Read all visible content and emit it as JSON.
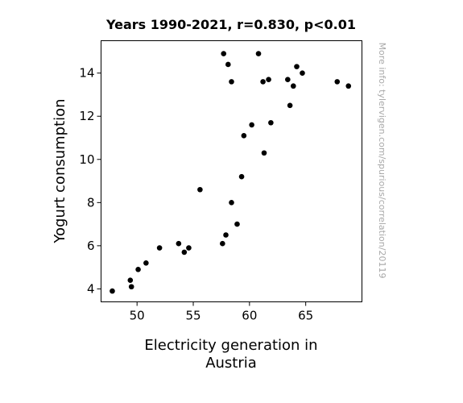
{
  "chart_data": {
    "type": "scatter",
    "title": "Years 1990-2021, r=0.830, p<0.01",
    "xlabel": [
      "Electricity generation in",
      "Austria"
    ],
    "ylabel": "Yogurt consumption",
    "credit": "More info: tylervigen.com/spurious/correlation/20119",
    "xlim": [
      46.8,
      70.0
    ],
    "ylim": [
      3.4,
      15.5
    ],
    "xticks": [
      50,
      55,
      60,
      65
    ],
    "yticks": [
      4,
      6,
      8,
      10,
      12,
      14
    ],
    "grid": false,
    "point_color": "#000000",
    "points": [
      {
        "x": 47.8,
        "y": 3.9
      },
      {
        "x": 49.5,
        "y": 4.1
      },
      {
        "x": 49.4,
        "y": 4.4
      },
      {
        "x": 50.1,
        "y": 4.9
      },
      {
        "x": 50.8,
        "y": 5.2
      },
      {
        "x": 52.0,
        "y": 5.9
      },
      {
        "x": 53.7,
        "y": 6.1
      },
      {
        "x": 54.2,
        "y": 5.7
      },
      {
        "x": 54.6,
        "y": 5.9
      },
      {
        "x": 55.6,
        "y": 8.6
      },
      {
        "x": 57.6,
        "y": 6.1
      },
      {
        "x": 57.9,
        "y": 6.5
      },
      {
        "x": 58.9,
        "y": 7.0
      },
      {
        "x": 58.4,
        "y": 8.0
      },
      {
        "x": 59.3,
        "y": 9.2
      },
      {
        "x": 59.5,
        "y": 11.1
      },
      {
        "x": 60.2,
        "y": 11.6
      },
      {
        "x": 61.3,
        "y": 10.3
      },
      {
        "x": 61.9,
        "y": 11.7
      },
      {
        "x": 63.6,
        "y": 12.5
      },
      {
        "x": 57.7,
        "y": 14.9
      },
      {
        "x": 58.1,
        "y": 14.4
      },
      {
        "x": 58.4,
        "y": 13.6
      },
      {
        "x": 60.8,
        "y": 14.9
      },
      {
        "x": 61.2,
        "y": 13.6
      },
      {
        "x": 61.7,
        "y": 13.7
      },
      {
        "x": 63.4,
        "y": 13.7
      },
      {
        "x": 63.9,
        "y": 13.4
      },
      {
        "x": 64.2,
        "y": 14.3
      },
      {
        "x": 64.7,
        "y": 14.0
      },
      {
        "x": 67.8,
        "y": 13.6
      },
      {
        "x": 68.8,
        "y": 13.4
      }
    ]
  }
}
